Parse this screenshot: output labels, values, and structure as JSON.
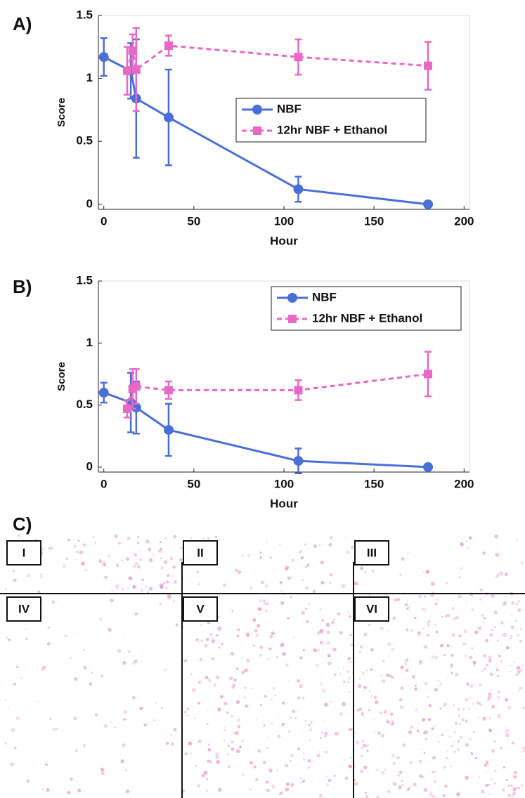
{
  "chart_data": [
    {
      "type": "line",
      "panel_label": "A)",
      "xlabel": "Hour",
      "ylabel": "Score",
      "xlim": [
        -3,
        203
      ],
      "ylim": [
        -0.04,
        1.5
      ],
      "xticks": [
        0,
        50,
        100,
        150,
        200
      ],
      "yticks": [
        0,
        0.5,
        1,
        1.5
      ],
      "legend": "center right",
      "series": [
        {
          "name": "NBF",
          "color": "#4a6fd8",
          "linestyle": "solid",
          "marker": "circle",
          "x": [
            0,
            15,
            18,
            36,
            108,
            180
          ],
          "values": [
            1.17,
            1.06,
            0.84,
            0.69,
            0.12,
            0.0
          ],
          "errors": [
            0.15,
            0.22,
            0.47,
            0.38,
            0.1,
            0.01
          ]
        },
        {
          "name": "12hr NBF + Ethanol",
          "color": "#e868c8",
          "linestyle": "dashed",
          "marker": "square",
          "x": [
            13,
            16,
            18,
            36,
            108,
            180
          ],
          "values": [
            1.06,
            1.22,
            1.07,
            1.26,
            1.17,
            1.1
          ],
          "errors": [
            0.19,
            0.13,
            0.33,
            0.08,
            0.14,
            0.19
          ]
        }
      ]
    },
    {
      "type": "line",
      "panel_label": "B)",
      "xlabel": "Hour",
      "ylabel": "Score",
      "xlim": [
        -3,
        203
      ],
      "ylim": [
        -0.04,
        1.5
      ],
      "xticks": [
        0,
        50,
        100,
        150,
        200
      ],
      "yticks": [
        0,
        0.5,
        1,
        1.5
      ],
      "legend": "upper right",
      "series": [
        {
          "name": "NBF",
          "color": "#4a6fd8",
          "linestyle": "solid",
          "marker": "circle",
          "x": [
            0,
            15,
            18,
            36,
            108,
            180
          ],
          "values": [
            0.6,
            0.52,
            0.48,
            0.3,
            0.05,
            0.0
          ],
          "errors": [
            0.08,
            0.24,
            0.21,
            0.21,
            0.1,
            0.01
          ]
        },
        {
          "name": "12hr NBF + Ethanol",
          "color": "#e868c8",
          "linestyle": "dashed",
          "marker": "square",
          "x": [
            13,
            16,
            18,
            36,
            108,
            180
          ],
          "values": [
            0.47,
            0.63,
            0.65,
            0.62,
            0.62,
            0.75
          ],
          "errors": [
            0.07,
            0.16,
            0.14,
            0.07,
            0.08,
            0.18
          ]
        }
      ]
    }
  ],
  "image_panel": {
    "label": "C)",
    "tiles": [
      "I",
      "II",
      "III",
      "IV",
      "V",
      "VI"
    ]
  }
}
